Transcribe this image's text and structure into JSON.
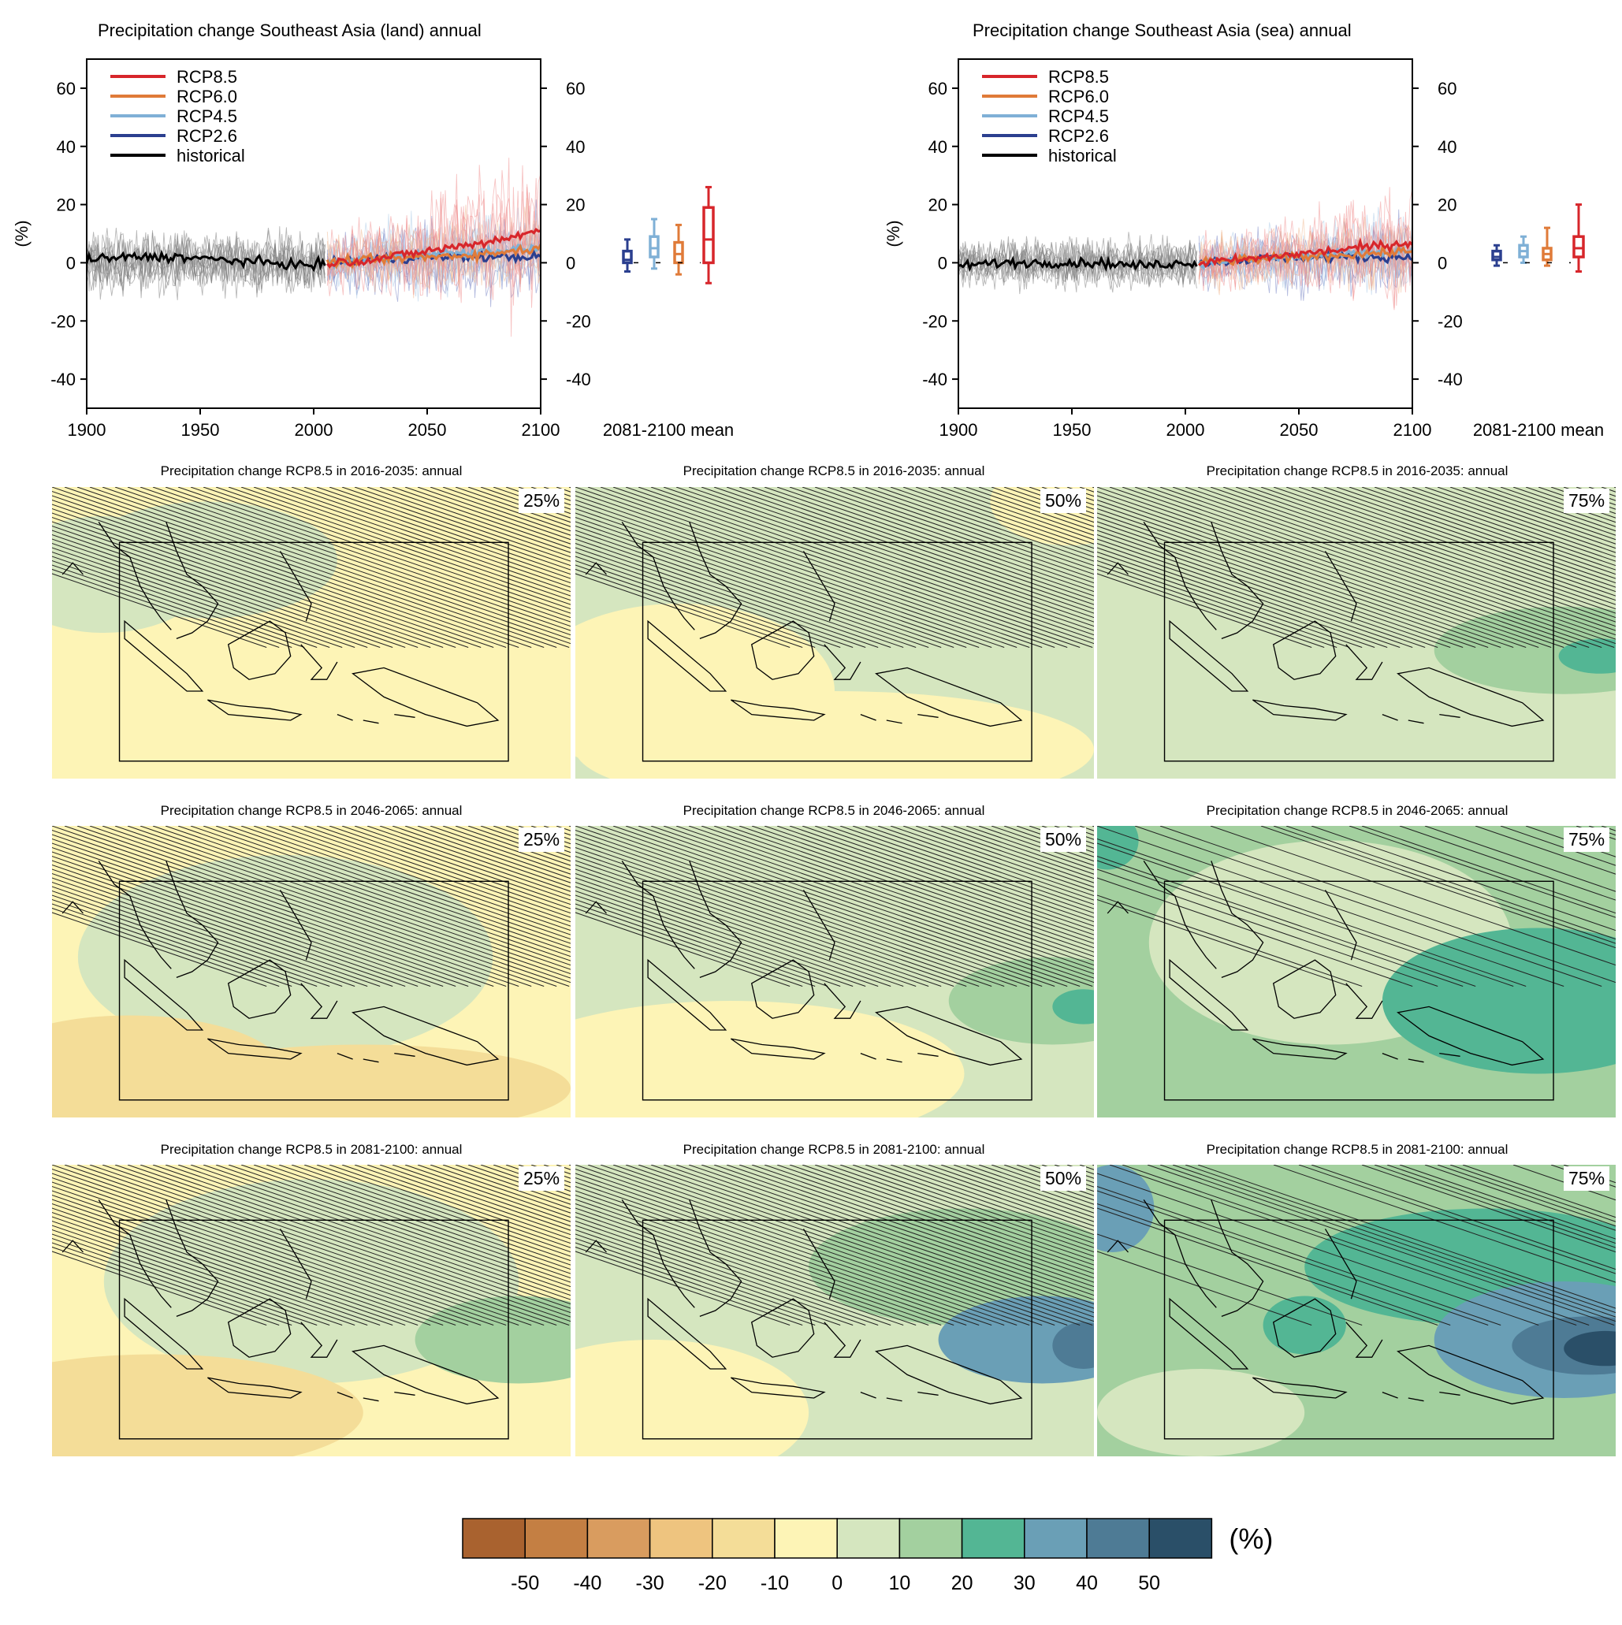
{
  "top_panels": [
    {
      "title": "Precipitation change Southeast Asia (land) annual",
      "ylabel": "(%)",
      "xticks": [
        "1900",
        "1950",
        "2000",
        "2050",
        "2100"
      ],
      "yticks": [
        "60",
        "40",
        "20",
        "0",
        "-20",
        "-40"
      ],
      "box_label": "2081-2100 mean",
      "legend": [
        "RCP8.5",
        "RCP6.0",
        "RCP4.5",
        "RCP2.6",
        "historical"
      ]
    },
    {
      "title": "Precipitation change Southeast Asia (sea) annual",
      "ylabel": "(%)",
      "xticks": [
        "1900",
        "1950",
        "2000",
        "2050",
        "2100"
      ],
      "yticks": [
        "60",
        "40",
        "20",
        "0",
        "-20",
        "-40"
      ],
      "box_label": "2081-2100 mean",
      "legend": [
        "RCP8.5",
        "RCP6.0",
        "RCP4.5",
        "RCP2.6",
        "historical"
      ]
    }
  ],
  "map_rows": [
    {
      "title": "Precipitation change RCP8.5 in 2016-2035: annual"
    },
    {
      "title": "Precipitation change RCP8.5 in 2046-2065: annual"
    },
    {
      "title": "Precipitation change RCP8.5 in 2081-2100: annual"
    }
  ],
  "percentiles": [
    "25%",
    "50%",
    "75%"
  ],
  "colorbar": {
    "unit": "(%)",
    "ticks": [
      "-50",
      "-40",
      "-30",
      "-20",
      "-10",
      "0",
      "10",
      "20",
      "30",
      "40",
      "50"
    ],
    "colors": [
      "#a9622f",
      "#c47f43",
      "#d99c5f",
      "#eec47f",
      "#f4dd98",
      "#fdf4b6",
      "#d5e6bf",
      "#a3d09f",
      "#53b694",
      "#6a9fb6",
      "#4e7b95",
      "#2a4f68"
    ]
  },
  "chart_data": [
    {
      "type": "line",
      "title": "Precipitation change Southeast Asia (land) annual",
      "ylabel": "(%)",
      "xlim": [
        1900,
        2100
      ],
      "ylim": [
        -50,
        70
      ],
      "legend_position": "top-left",
      "series": [
        {
          "name": "historical",
          "color": "#000000",
          "x": [
            1900,
            1920,
            1940,
            1960,
            1980,
            2000,
            2005
          ],
          "y": [
            1,
            2,
            2,
            1,
            0,
            -1,
            0
          ]
        },
        {
          "name": "RCP2.6",
          "color": "#2b3f8f",
          "x": [
            2006,
            2025,
            2050,
            2075,
            2100
          ],
          "y": [
            0,
            1,
            2,
            2,
            2
          ]
        },
        {
          "name": "RCP4.5",
          "color": "#7fb0d6",
          "x": [
            2006,
            2025,
            2050,
            2075,
            2100
          ],
          "y": [
            0,
            1,
            3,
            4,
            5
          ]
        },
        {
          "name": "RCP6.0",
          "color": "#e07b39",
          "x": [
            2006,
            2025,
            2050,
            2075,
            2100
          ],
          "y": [
            0,
            1,
            2,
            3,
            5
          ]
        },
        {
          "name": "RCP8.5",
          "color": "#d7262b",
          "x": [
            2006,
            2025,
            2050,
            2075,
            2100
          ],
          "y": [
            0,
            1,
            4,
            7,
            11
          ]
        }
      ],
      "boxes_2081_2100": [
        {
          "name": "RCP2.6",
          "color": "#2b3f8f",
          "min": -3,
          "q1": 0,
          "median": 1,
          "q3": 4,
          "max": 8
        },
        {
          "name": "RCP4.5",
          "color": "#7fb0d6",
          "min": -2,
          "q1": 2,
          "median": 5,
          "q3": 9,
          "max": 15
        },
        {
          "name": "RCP6.0",
          "color": "#e07b39",
          "min": -4,
          "q1": 0,
          "median": 3,
          "q3": 7,
          "max": 13
        },
        {
          "name": "RCP8.5",
          "color": "#d7262b",
          "min": -7,
          "q1": 0,
          "median": 8,
          "q3": 19,
          "max": 26
        }
      ]
    },
    {
      "type": "line",
      "title": "Precipitation change Southeast Asia (sea) annual",
      "ylabel": "(%)",
      "xlim": [
        1900,
        2100
      ],
      "ylim": [
        -50,
        70
      ],
      "legend_position": "top-left",
      "series": [
        {
          "name": "historical",
          "color": "#000000",
          "x": [
            1900,
            1920,
            1940,
            1960,
            1980,
            2000,
            2005
          ],
          "y": [
            -1,
            0,
            0,
            0,
            -1,
            0,
            0
          ]
        },
        {
          "name": "RCP2.6",
          "color": "#2b3f8f",
          "x": [
            2006,
            2025,
            2050,
            2075,
            2100
          ],
          "y": [
            0,
            1,
            2,
            2,
            2
          ]
        },
        {
          "name": "RCP4.5",
          "color": "#7fb0d6",
          "x": [
            2006,
            2025,
            2050,
            2075,
            2100
          ],
          "y": [
            0,
            1,
            2,
            3,
            4
          ]
        },
        {
          "name": "RCP6.0",
          "color": "#e07b39",
          "x": [
            2006,
            2025,
            2050,
            2075,
            2100
          ],
          "y": [
            0,
            1,
            2,
            3,
            4
          ]
        },
        {
          "name": "RCP8.5",
          "color": "#d7262b",
          "x": [
            2006,
            2025,
            2050,
            2075,
            2100
          ],
          "y": [
            0,
            1,
            3,
            5,
            7
          ]
        }
      ],
      "boxes_2081_2100": [
        {
          "name": "RCP2.6",
          "color": "#2b3f8f",
          "min": -1,
          "q1": 1,
          "median": 2,
          "q3": 4,
          "max": 6
        },
        {
          "name": "RCP4.5",
          "color": "#7fb0d6",
          "min": 0,
          "q1": 2,
          "median": 4,
          "q3": 6,
          "max": 9
        },
        {
          "name": "RCP6.0",
          "color": "#e07b39",
          "min": -1,
          "q1": 1,
          "median": 3,
          "q3": 5,
          "max": 12
        },
        {
          "name": "RCP8.5",
          "color": "#d7262b",
          "min": -3,
          "q1": 2,
          "median": 5,
          "q3": 9,
          "max": 20
        }
      ]
    }
  ]
}
